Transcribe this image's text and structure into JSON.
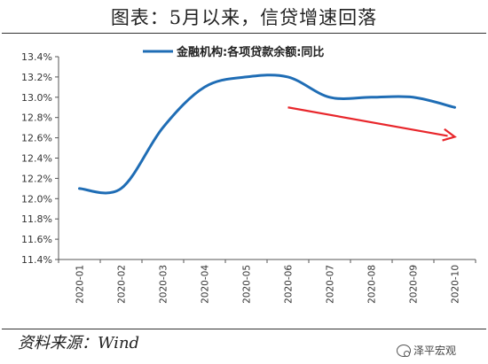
{
  "header": {
    "title": "图表：5月以来，信贷增速回落"
  },
  "footer": {
    "source": "资料来源：Wind",
    "watermark": "泽平宏观",
    "watermark_icon": "wechat-icon"
  },
  "colors": {
    "line": "#1f6db5",
    "arrow": "#e8262b",
    "axis": "#555555"
  },
  "chart_data": {
    "type": "line",
    "title": "图表：5月以来，信贷增速回落",
    "categories": [
      "2020-01",
      "2020-02",
      "2020-03",
      "2020-04",
      "2020-05",
      "2020-06",
      "2020-07",
      "2020-08",
      "2020-09",
      "2020-10"
    ],
    "series": [
      {
        "name": "金融机构:各项贷款余额:同比",
        "values": [
          12.1,
          12.1,
          12.7,
          13.1,
          13.2,
          13.2,
          13.0,
          13.0,
          13.0,
          12.9
        ]
      }
    ],
    "ylim": [
      11.4,
      13.4
    ],
    "yticks": [
      "11.4%",
      "11.6%",
      "11.8%",
      "12.0%",
      "12.2%",
      "12.4%",
      "12.6%",
      "12.8%",
      "13.0%",
      "13.2%",
      "13.4%"
    ],
    "xlabel": "",
    "ylabel": "",
    "grid": false,
    "legend": "top",
    "annotations": [
      {
        "type": "arrow",
        "from": {
          "x": "2020-06",
          "y": 12.9
        },
        "to": {
          "x": "2020-10",
          "y": 12.61
        }
      }
    ]
  }
}
